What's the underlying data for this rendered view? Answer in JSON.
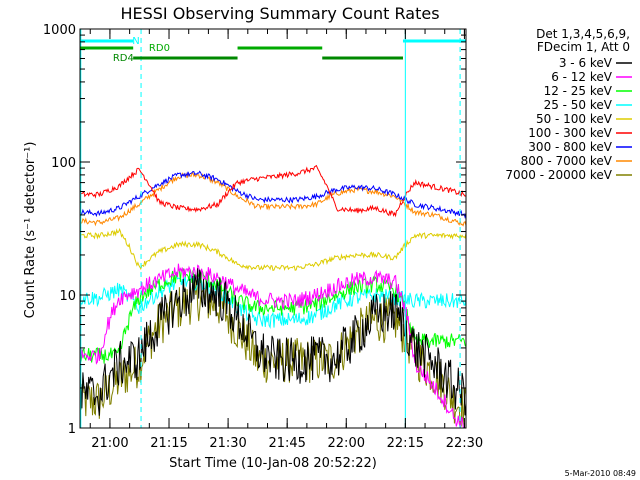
{
  "chart_data": {
    "type": "line",
    "title": "HESSI Observing Summary Count Rates",
    "xlabel": "Start Time (10-Jan-08 20:52:22)",
    "ylabel": "Count Rate (s⁻¹ detector⁻¹)",
    "x_unit": "minutes since 20:52:22",
    "xlim": [
      0,
      98
    ],
    "ylim": [
      1,
      1000
    ],
    "yscale": "log",
    "grid": false,
    "x_ticks": [
      {
        "value": 7.6,
        "label": "21:00"
      },
      {
        "value": 22.6,
        "label": "21:15"
      },
      {
        "value": 37.6,
        "label": "21:30"
      },
      {
        "value": 52.6,
        "label": "21:45"
      },
      {
        "value": 67.6,
        "label": "22:00"
      },
      {
        "value": 82.6,
        "label": "22:15"
      },
      {
        "value": 97.6,
        "label": "22:30"
      }
    ],
    "y_ticks": [
      {
        "value": 1,
        "label": "1"
      },
      {
        "value": 10,
        "label": "10"
      },
      {
        "value": 100,
        "label": "100"
      },
      {
        "value": 1000,
        "label": "1000"
      }
    ],
    "legend": {
      "position": "right",
      "header": [
        "Det 1,3,4,5,6,9,",
        "FDecim 1, Att 0"
      ]
    },
    "series": [
      {
        "name": "3 - 6 keV",
        "color": "#000000",
        "x": [
          0,
          5,
          10,
          15,
          20,
          25,
          30,
          35,
          40,
          45,
          50,
          55,
          60,
          65,
          70,
          75,
          80,
          85,
          90,
          95,
          98
        ],
        "y": [
          1.8,
          1.8,
          3,
          3.4,
          6,
          9,
          11,
          10,
          6.5,
          3.8,
          3.2,
          3.2,
          3.3,
          3.3,
          4.8,
          7,
          7.5,
          4,
          3,
          2,
          1.8
        ]
      },
      {
        "name": "6 - 12 keV",
        "color": "#ff00ff",
        "x": [
          0,
          5,
          10,
          15,
          20,
          25,
          30,
          35,
          40,
          45,
          50,
          55,
          60,
          65,
          70,
          75,
          80,
          85,
          90,
          95,
          98
        ],
        "y": [
          3.5,
          3.5,
          9.5,
          11,
          13,
          15,
          15,
          13.5,
          11,
          9.5,
          9,
          9,
          10,
          11.5,
          13,
          13.5,
          12.5,
          3,
          2,
          1.2,
          1
        ]
      },
      {
        "name": "12 - 25 keV",
        "color": "#00ff00",
        "x": [
          0,
          5,
          10,
          15,
          20,
          25,
          30,
          35,
          40,
          45,
          50,
          55,
          60,
          65,
          70,
          75,
          80,
          85,
          90,
          95,
          98
        ],
        "y": [
          3.5,
          3.5,
          3.5,
          9.5,
          12,
          14,
          14,
          12,
          9,
          8,
          8,
          8,
          8.5,
          10,
          11.5,
          12,
          11,
          4.5,
          4.5,
          4.5,
          4.5
        ]
      },
      {
        "name": "25 - 50 keV",
        "color": "#00ffff",
        "x": [
          0,
          5,
          10,
          15,
          20,
          25,
          30,
          35,
          40,
          45,
          50,
          55,
          60,
          65,
          70,
          75,
          80,
          85,
          90,
          95,
          98
        ],
        "y": [
          9.5,
          9.5,
          11,
          8,
          10.5,
          12.5,
          12.5,
          11,
          8,
          6.5,
          6.5,
          6.5,
          7,
          8.5,
          9.5,
          10,
          9.5,
          9,
          9,
          9,
          9
        ]
      },
      {
        "name": "50 - 100 keV",
        "color": "#ddcc00",
        "x": [
          0,
          5,
          10,
          15,
          20,
          25,
          30,
          35,
          40,
          45,
          50,
          55,
          60,
          65,
          70,
          75,
          80,
          85,
          90,
          95,
          98
        ],
        "y": [
          28,
          28,
          30,
          16,
          21,
          24,
          24,
          21,
          17,
          16,
          16,
          16,
          17,
          19,
          20,
          20,
          19,
          28,
          28,
          28,
          28
        ]
      },
      {
        "name": "100 - 300 keV",
        "color": "#ff0000",
        "x": [
          0,
          5,
          10,
          15,
          20,
          25,
          30,
          35,
          40,
          45,
          50,
          55,
          60,
          65,
          70,
          75,
          80,
          85,
          90,
          95,
          98
        ],
        "y": [
          57,
          57,
          66,
          88,
          50,
          45,
          44,
          48,
          70,
          75,
          78,
          82,
          90,
          45,
          43,
          45,
          40,
          70,
          65,
          60,
          56
        ]
      },
      {
        "name": "300 - 800 keV",
        "color": "#0000ff",
        "x": [
          0,
          5,
          10,
          15,
          20,
          25,
          30,
          35,
          40,
          45,
          50,
          55,
          60,
          65,
          70,
          75,
          80,
          85,
          90,
          95,
          98
        ],
        "y": [
          42,
          41,
          45,
          55,
          68,
          80,
          82,
          74,
          60,
          52,
          52,
          52,
          55,
          62,
          65,
          63,
          57,
          48,
          45,
          42,
          40
        ]
      },
      {
        "name": "800 - 7000 keV",
        "color": "#ff8800",
        "x": [
          0,
          5,
          10,
          15,
          20,
          25,
          30,
          35,
          40,
          45,
          50,
          55,
          60,
          65,
          70,
          75,
          80,
          85,
          90,
          95,
          98
        ],
        "y": [
          36,
          35,
          38,
          48,
          62,
          78,
          80,
          70,
          55,
          46,
          46,
          46,
          48,
          58,
          62,
          60,
          55,
          42,
          40,
          36,
          34
        ]
      },
      {
        "name": "7000 - 20000 keV",
        "color": "#808000",
        "x": [
          0,
          5,
          10,
          15,
          20,
          25,
          30,
          35,
          40,
          45,
          50,
          55,
          60,
          65,
          70,
          75,
          80,
          85,
          90,
          95,
          98
        ],
        "y": [
          1.6,
          1.6,
          2.3,
          3,
          6,
          8,
          9.5,
          8.5,
          5.5,
          3.2,
          3.2,
          3.2,
          3.2,
          3.3,
          5,
          6.5,
          6.5,
          3.5,
          2.5,
          1.6,
          1.4
        ]
      }
    ],
    "annotations": [
      {
        "text": "N",
        "color": "#00ffff",
        "bars": [
          [
            0,
            13.5
          ],
          [
            82,
            98
          ]
        ]
      },
      {
        "text": "RD0",
        "color": "#00aa00",
        "bars": [
          [
            0,
            13.5
          ],
          [
            40,
            61.5
          ]
        ]
      },
      {
        "text": "RD4",
        "color": "#008800",
        "bars": [
          [
            13.5,
            40
          ],
          [
            61.5,
            82
          ]
        ]
      }
    ],
    "event_lines": [
      {
        "x": 15.5,
        "color": "#00ffff",
        "style": "dashed"
      },
      {
        "x": 96.5,
        "color": "#00ffff",
        "style": "dashed"
      },
      {
        "x": 0.2,
        "color": "#00ffff",
        "style": "solid"
      },
      {
        "x": 82.6,
        "color": "#00ffff",
        "style": "solid"
      }
    ]
  },
  "footer": {
    "timestamp": "5-Mar-2010 08:49"
  }
}
